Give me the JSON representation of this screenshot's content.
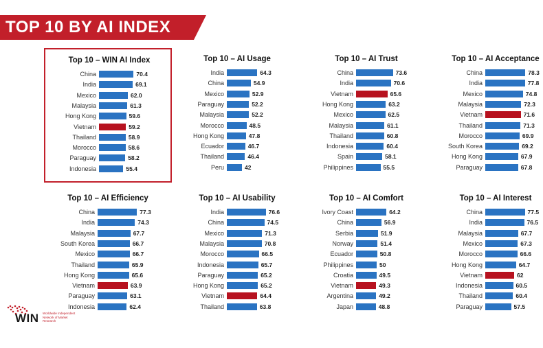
{
  "header": {
    "title": "TOP 10 BY AI INDEX"
  },
  "colors": {
    "bar": "#2a73c2",
    "highlight_bar": "#b7121f",
    "banner": "#c21f2a"
  },
  "logo": {
    "name": "WIN",
    "tagline": "Worldwide Independent Network of Market Research"
  },
  "chart_data": [
    {
      "type": "bar",
      "title": "Top 10 – WIN AI Index",
      "highlighted": true,
      "highlight_category": "Vietnam",
      "categories": [
        "China",
        "India",
        "Mexico",
        "Malaysia",
        "Hong Kong",
        "Vietnam",
        "Thailand",
        "Morocco",
        "Paraguay",
        "Indonesia"
      ],
      "values": [
        "70.4",
        "69.1",
        "62.0",
        "61.3",
        "59.6",
        "59.2",
        "58.9",
        "58.6",
        "58.2",
        "55.4"
      ]
    },
    {
      "type": "bar",
      "title": "Top 10 – AI Usage",
      "highlighted": false,
      "highlight_category": "",
      "categories": [
        "India",
        "China",
        "Mexico",
        "Paraguay",
        "Malaysia",
        "Morocco",
        "Hong Kong",
        "Ecuador",
        "Thailand",
        "Peru"
      ],
      "values": [
        "64.3",
        "54.9",
        "52.9",
        "52.2",
        "52.2",
        "48.5",
        "47.8",
        "46.7",
        "46.4",
        "42"
      ]
    },
    {
      "type": "bar",
      "title": "Top 10 – AI Trust",
      "highlighted": false,
      "highlight_category": "Vietnam",
      "categories": [
        "China",
        "India",
        "Vietnam",
        "Hong Kong",
        "Mexico",
        "Malaysia",
        "Thailand",
        "Indonesia",
        "Spain",
        "Philippines"
      ],
      "values": [
        "73.6",
        "70.6",
        "65.6",
        "63.2",
        "62.5",
        "61.1",
        "60.8",
        "60.4",
        "58.1",
        "55.5"
      ]
    },
    {
      "type": "bar",
      "title": "Top 10 – AI Acceptance",
      "highlighted": false,
      "highlight_category": "Vietnam",
      "categories": [
        "China",
        "India",
        "Mexico",
        "Malaysia",
        "Vietnam",
        "Thailand",
        "Morocco",
        "South Korea",
        "Hong Kong",
        "Paraguay"
      ],
      "values": [
        "78.3",
        "77.8",
        "74.8",
        "72.3",
        "71.6",
        "71.3",
        "69.9",
        "69.2",
        "67.9",
        "67.8"
      ]
    },
    {
      "type": "bar",
      "title": "Top 10 – AI Efficiency",
      "highlighted": false,
      "highlight_category": "Vietnam",
      "categories": [
        "China",
        "India",
        "Malaysia",
        "South Korea",
        "Mexico",
        "Thailand",
        "Hong Kong",
        "Vietnam",
        "Paraguay",
        "Indonesia"
      ],
      "values": [
        "77.3",
        "74.3",
        "67.7",
        "66.7",
        "66.7",
        "65.9",
        "65.6",
        "63.9",
        "63.1",
        "62.4"
      ]
    },
    {
      "type": "bar",
      "title": "Top 10 – AI Usability",
      "highlighted": false,
      "highlight_category": "Vietnam",
      "categories": [
        "India",
        "China",
        "Mexico",
        "Malaysia",
        "Morocco",
        "Indonesia",
        "Paraguay",
        "Hong Kong",
        "Vietnam",
        "Thailand"
      ],
      "values": [
        "76.6",
        "74.5",
        "71.3",
        "70.8",
        "66.5",
        "65.7",
        "65.2",
        "65.2",
        "64.4",
        "63.8"
      ]
    },
    {
      "type": "bar",
      "title": "Top 10 – AI Comfort",
      "highlighted": false,
      "highlight_category": "Vietnam",
      "categories": [
        "Ivory Coast",
        "China",
        "Serbia",
        "Norway",
        "Ecuador",
        "Philippines",
        "Croatia",
        "Vietnam",
        "Argentina",
        "Japan"
      ],
      "values": [
        "64.2",
        "56.9",
        "51.9",
        "51.4",
        "50.8",
        "50",
        "49.5",
        "49.3",
        "49.2",
        "48.8"
      ]
    },
    {
      "type": "bar",
      "title": "Top 10 – AI Interest",
      "highlighted": false,
      "highlight_category": "Vietnam",
      "categories": [
        "China",
        "India",
        "Malaysia",
        "Mexico",
        "Morocco",
        "Hong Kong",
        "Vietnam",
        "Indonesia",
        "Thailand",
        "Paraguay"
      ],
      "values": [
        "77.5",
        "76.5",
        "67.7",
        "67.3",
        "66.6",
        "64.7",
        "62",
        "60.5",
        "60.4",
        "57.5"
      ]
    }
  ]
}
